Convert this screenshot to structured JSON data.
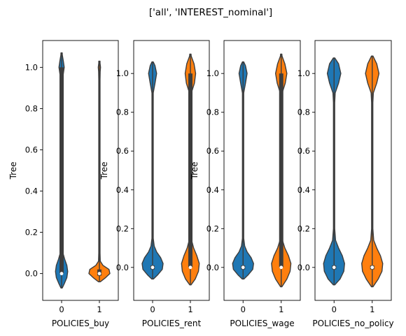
{
  "figure": {
    "suptitle": "['all', 'INTEREST_nominal']"
  },
  "chart_data": [
    {
      "type": "violin",
      "xlabel": "POLICIES_buy",
      "ylabel": "Tree",
      "categories": [
        "0",
        "1"
      ],
      "ylim": [
        -0.13,
        1.13
      ],
      "yticks": [
        "0.0",
        "0.2",
        "0.4",
        "0.6",
        "0.8",
        "1.0"
      ],
      "series": [
        {
          "category": "0",
          "color": "#1f77b4",
          "median": 0.0,
          "q1": 0.0,
          "q3": 1.0,
          "min": -0.07,
          "max": 1.07,
          "density": [
            [
              -0.07,
              0.004
            ],
            [
              -0.05,
              0.03
            ],
            [
              -0.02,
              0.06
            ],
            [
              0.01,
              0.07
            ],
            [
              0.04,
              0.06
            ],
            [
              0.07,
              0.035
            ],
            [
              0.1,
              0.015
            ],
            [
              0.15,
              0.006
            ],
            [
              0.3,
              0.005
            ],
            [
              0.6,
              0.005
            ],
            [
              0.88,
              0.006
            ],
            [
              0.94,
              0.01
            ],
            [
              0.97,
              0.02
            ],
            [
              1.0,
              0.03
            ],
            [
              1.03,
              0.02
            ],
            [
              1.06,
              0.008
            ],
            [
              1.07,
              0.003
            ]
          ]
        },
        {
          "category": "1",
          "color": "#ff7f0e",
          "median": 0.0,
          "q1": -0.01,
          "q3": 0.02,
          "min": -0.04,
          "max": 1.03,
          "density": [
            [
              -0.04,
              0.01
            ],
            [
              -0.02,
              0.07
            ],
            [
              0.0,
              0.12
            ],
            [
              0.02,
              0.11
            ],
            [
              0.04,
              0.04
            ],
            [
              0.06,
              0.01
            ],
            [
              0.1,
              0.004
            ],
            [
              0.5,
              0.002
            ],
            [
              0.94,
              0.003
            ],
            [
              0.98,
              0.009
            ],
            [
              1.0,
              0.013
            ],
            [
              1.02,
              0.006
            ],
            [
              1.03,
              0.002
            ]
          ]
        }
      ]
    },
    {
      "type": "violin",
      "xlabel": "POLICIES_rent",
      "ylabel": "Tree",
      "categories": [
        "0",
        "1"
      ],
      "ylim": [
        -0.17,
        1.17
      ],
      "yticks": [
        "0.0",
        "0.2",
        "0.4",
        "0.6",
        "0.8",
        "1.0"
      ],
      "series": [
        {
          "category": "0",
          "color": "#1f77b4",
          "median": 0.0,
          "q1": -0.01,
          "q3": 0.01,
          "min": -0.06,
          "max": 1.06,
          "density": [
            [
              -0.06,
              0.01
            ],
            [
              -0.04,
              0.06
            ],
            [
              -0.01,
              0.12
            ],
            [
              0.02,
              0.13
            ],
            [
              0.05,
              0.1
            ],
            [
              0.08,
              0.05
            ],
            [
              0.11,
              0.02
            ],
            [
              0.15,
              0.008
            ],
            [
              0.4,
              0.004
            ],
            [
              0.8,
              0.005
            ],
            [
              0.9,
              0.008
            ],
            [
              0.95,
              0.03
            ],
            [
              1.0,
              0.05
            ],
            [
              1.04,
              0.03
            ],
            [
              1.06,
              0.005
            ]
          ]
        },
        {
          "category": "1",
          "color": "#ff7f0e",
          "median": 0.0,
          "q1": 0.0,
          "q3": 1.0,
          "min": -0.09,
          "max": 1.1,
          "density": [
            [
              -0.09,
              0.005
            ],
            [
              -0.06,
              0.06
            ],
            [
              -0.02,
              0.1
            ],
            [
              0.02,
              0.11
            ],
            [
              0.06,
              0.08
            ],
            [
              0.1,
              0.04
            ],
            [
              0.14,
              0.015
            ],
            [
              0.2,
              0.006
            ],
            [
              0.5,
              0.005
            ],
            [
              0.85,
              0.006
            ],
            [
              0.9,
              0.012
            ],
            [
              0.95,
              0.05
            ],
            [
              1.0,
              0.065
            ],
            [
              1.05,
              0.045
            ],
            [
              1.09,
              0.01
            ],
            [
              1.1,
              0.003
            ]
          ]
        }
      ]
    },
    {
      "type": "violin",
      "xlabel": "POLICIES_wage",
      "ylabel": "Tree",
      "categories": [
        "0",
        "1"
      ],
      "ylim": [
        -0.17,
        1.17
      ],
      "yticks": [
        "0.0",
        "0.2",
        "0.4",
        "0.6",
        "0.8",
        "1.0"
      ],
      "series": [
        {
          "category": "0",
          "color": "#1f77b4",
          "median": 0.0,
          "q1": -0.01,
          "q3": 0.01,
          "min": -0.06,
          "max": 1.06,
          "density": [
            [
              -0.06,
              0.01
            ],
            [
              -0.04,
              0.06
            ],
            [
              -0.01,
              0.12
            ],
            [
              0.02,
              0.13
            ],
            [
              0.05,
              0.1
            ],
            [
              0.08,
              0.05
            ],
            [
              0.11,
              0.02
            ],
            [
              0.15,
              0.008
            ],
            [
              0.4,
              0.004
            ],
            [
              0.8,
              0.005
            ],
            [
              0.9,
              0.008
            ],
            [
              0.95,
              0.03
            ],
            [
              1.0,
              0.05
            ],
            [
              1.04,
              0.03
            ],
            [
              1.06,
              0.005
            ]
          ]
        },
        {
          "category": "1",
          "color": "#ff7f0e",
          "median": 0.0,
          "q1": 0.0,
          "q3": 1.0,
          "min": -0.1,
          "max": 1.1,
          "density": [
            [
              -0.1,
              0.005
            ],
            [
              -0.06,
              0.07
            ],
            [
              -0.02,
              0.11
            ],
            [
              0.02,
              0.12
            ],
            [
              0.06,
              0.09
            ],
            [
              0.1,
              0.045
            ],
            [
              0.14,
              0.015
            ],
            [
              0.2,
              0.006
            ],
            [
              0.5,
              0.005
            ],
            [
              0.85,
              0.006
            ],
            [
              0.9,
              0.012
            ],
            [
              0.95,
              0.05
            ],
            [
              1.0,
              0.07
            ],
            [
              1.05,
              0.045
            ],
            [
              1.09,
              0.01
            ],
            [
              1.1,
              0.003
            ]
          ]
        }
      ]
    },
    {
      "type": "violin",
      "xlabel": "POLICIES_no_policy",
      "ylabel": "",
      "categories": [
        "0",
        "1"
      ],
      "ylim": [
        -0.17,
        1.17
      ],
      "yticks": [
        "0.0",
        "0.2",
        "0.4",
        "0.6",
        "0.8",
        "1.0"
      ],
      "series": [
        {
          "category": "0",
          "color": "#1f77b4",
          "median": 0.0,
          "q1": -0.01,
          "q3": 0.01,
          "min": -0.09,
          "max": 1.08,
          "density": [
            [
              -0.09,
              0.01
            ],
            [
              -0.06,
              0.08
            ],
            [
              -0.02,
              0.13
            ],
            [
              0.02,
              0.14
            ],
            [
              0.06,
              0.11
            ],
            [
              0.1,
              0.06
            ],
            [
              0.14,
              0.02
            ],
            [
              0.2,
              0.008
            ],
            [
              0.5,
              0.004
            ],
            [
              0.85,
              0.006
            ],
            [
              0.9,
              0.015
            ],
            [
              0.95,
              0.06
            ],
            [
              1.0,
              0.09
            ],
            [
              1.05,
              0.06
            ],
            [
              1.08,
              0.01
            ]
          ]
        },
        {
          "category": "1",
          "color": "#ff7f0e",
          "median": 0.0,
          "q1": -0.01,
          "q3": 0.01,
          "min": -0.1,
          "max": 1.09,
          "density": [
            [
              -0.1,
              0.01
            ],
            [
              -0.06,
              0.08
            ],
            [
              -0.02,
              0.13
            ],
            [
              0.02,
              0.14
            ],
            [
              0.06,
              0.11
            ],
            [
              0.1,
              0.06
            ],
            [
              0.14,
              0.02
            ],
            [
              0.2,
              0.008
            ],
            [
              0.5,
              0.004
            ],
            [
              0.85,
              0.006
            ],
            [
              0.9,
              0.015
            ],
            [
              0.95,
              0.06
            ],
            [
              1.0,
              0.09
            ],
            [
              1.05,
              0.06
            ],
            [
              1.09,
              0.01
            ]
          ]
        }
      ]
    }
  ]
}
